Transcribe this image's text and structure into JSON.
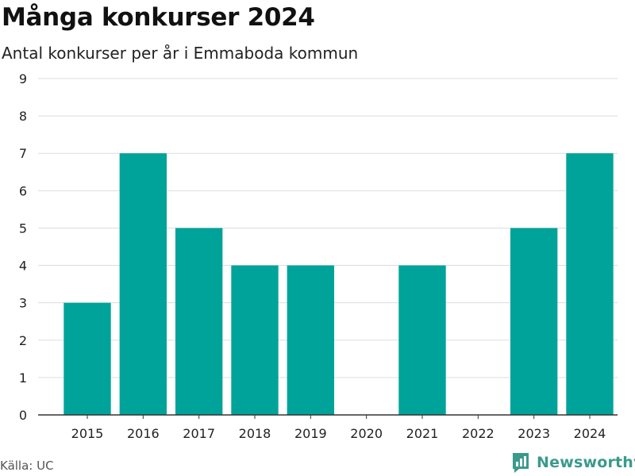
{
  "header": {
    "title": "Många konkurser 2024",
    "subtitle": "Antal konkurser per år i Emmaboda kommun"
  },
  "footer": {
    "source": "Källa: UC",
    "brand": "Newsworthy"
  },
  "colors": {
    "bar": "#00a39a",
    "grid": "#dddddd",
    "axis": "#333333",
    "brand": "#3a9a8c"
  },
  "chart_data": {
    "type": "bar",
    "categories": [
      "2015",
      "2016",
      "2017",
      "2018",
      "2019",
      "2020",
      "2021",
      "2022",
      "2023",
      "2024"
    ],
    "values": [
      3,
      7,
      5,
      4,
      4,
      0,
      4,
      0,
      5,
      7
    ],
    "ylim": [
      0,
      9
    ],
    "yticks": [
      0,
      1,
      2,
      3,
      4,
      5,
      6,
      7,
      8,
      9
    ],
    "xlabel": "",
    "ylabel": "",
    "grid": true,
    "legend": "none"
  }
}
